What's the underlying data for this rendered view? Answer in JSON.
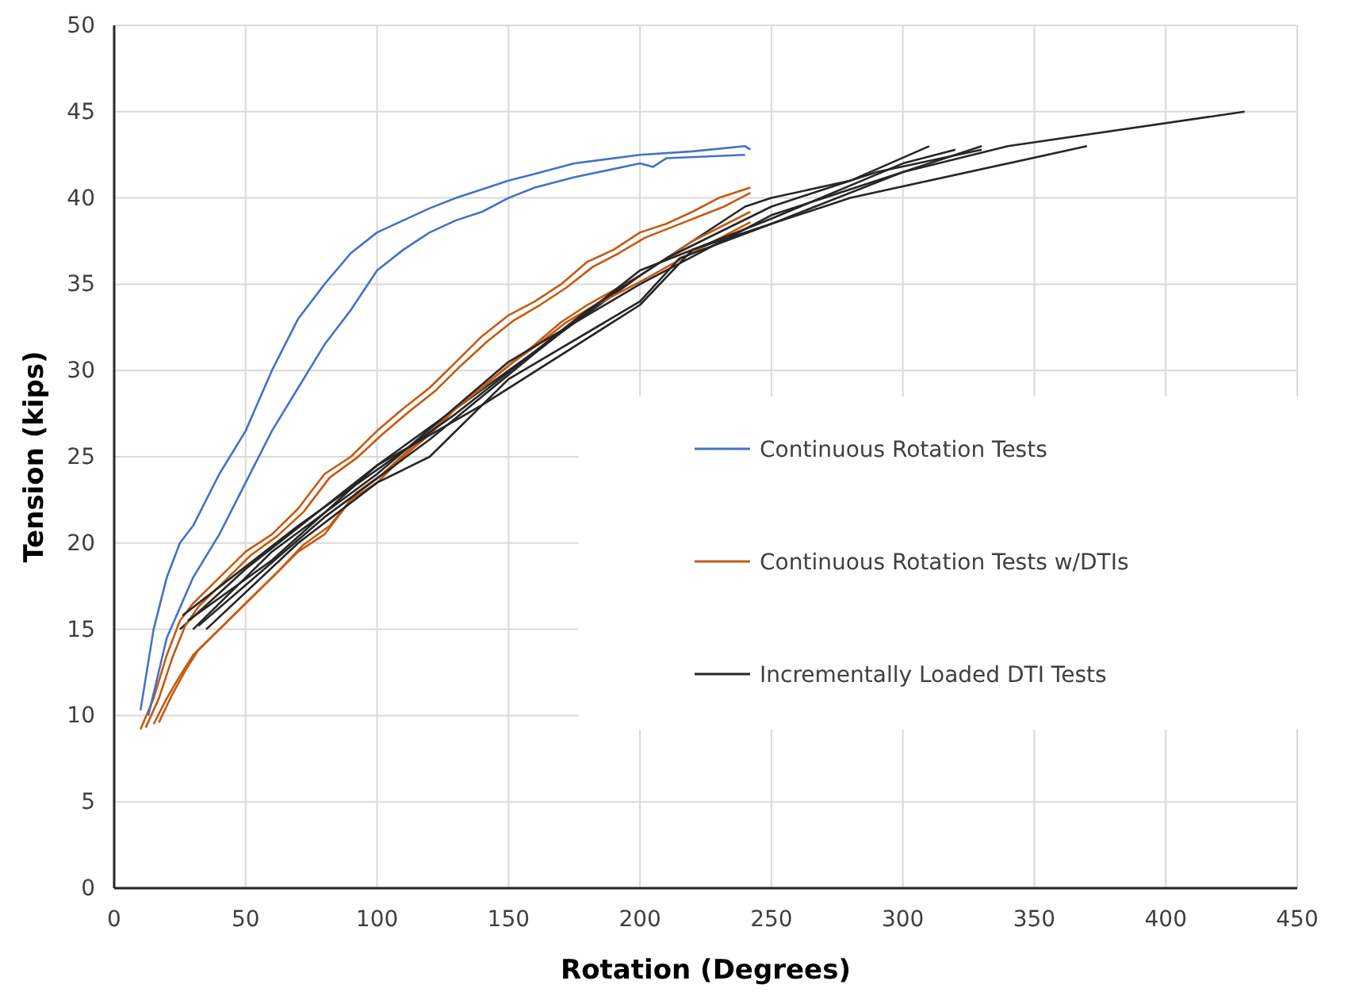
{
  "chart_data": {
    "type": "line",
    "xlabel": "Rotation (Degrees)",
    "ylabel": "Tension (kips)",
    "xlim": [
      0,
      450
    ],
    "xticks": [
      0,
      50,
      100,
      150,
      200,
      250,
      300,
      350,
      400,
      450
    ],
    "ylim": [
      0,
      50
    ],
    "yticks": [
      0,
      5,
      10,
      15,
      20,
      25,
      30,
      35,
      40,
      45,
      50
    ],
    "grid": true,
    "legend": "right",
    "marker": "none",
    "line_style": "solid",
    "series": [
      {
        "name": "Continuous Rotation Tests",
        "color": "#4472c4",
        "x": [
          10,
          15,
          20,
          25,
          30,
          35,
          40,
          50,
          60,
          70,
          80,
          90,
          100,
          110,
          120,
          130,
          140,
          150,
          160,
          175,
          200,
          220,
          240,
          242
        ],
        "values": [
          10.3,
          15,
          18,
          20,
          21,
          22.5,
          24,
          26.5,
          30,
          33,
          35,
          36.8,
          38,
          38.7,
          39.4,
          40,
          40.5,
          41,
          41.4,
          42,
          42.5,
          42.7,
          43,
          42.8
        ]
      },
      {
        "name": "Continuous Rotation Tests w/DTIs",
        "color": "#c55a11",
        "x": [
          10,
          15,
          20,
          25,
          30,
          40,
          50,
          60,
          70,
          80,
          90,
          100,
          110,
          120,
          130,
          140,
          150,
          160,
          170,
          180,
          190,
          200,
          210,
          220,
          230,
          242
        ],
        "values": [
          9.2,
          11,
          13.5,
          15.5,
          16.5,
          18,
          19.5,
          20.5,
          22,
          24,
          25,
          26.5,
          27.8,
          29,
          30.5,
          32,
          33.2,
          34,
          35,
          36.3,
          37,
          38,
          38.5,
          39.2,
          40,
          40.6
        ]
      },
      {
        "name": "Incrementally Loaded DTI Tests",
        "color": "#262626",
        "x": [
          25,
          50,
          100,
          150,
          200,
          240,
          250,
          280,
          310
        ],
        "values": [
          15,
          18.5,
          24.5,
          30,
          35.5,
          39.5,
          40,
          41,
          43
        ]
      },
      {
        "color": "#4472c4",
        "x": [
          13,
          20,
          30,
          40,
          50,
          60,
          70,
          80,
          90,
          100,
          110,
          120,
          130,
          140,
          150,
          160,
          175,
          200,
          205,
          210,
          240
        ],
        "values": [
          10,
          14.5,
          18,
          20.5,
          23.5,
          26.5,
          29,
          31.5,
          33.5,
          35.8,
          37,
          38,
          38.7,
          39.2,
          40,
          40.6,
          41.2,
          42,
          41.8,
          42.3,
          42.5
        ]
      },
      {
        "color": "#c55a11",
        "x": [
          12,
          17,
          22,
          27,
          32,
          42,
          52,
          62,
          72,
          82,
          92,
          102,
          112,
          122,
          132,
          142,
          152,
          162,
          172,
          182,
          192,
          202,
          212,
          222,
          232,
          242
        ],
        "values": [
          9.3,
          11,
          13.3,
          15.2,
          16.3,
          17.8,
          19.3,
          20.4,
          21.8,
          23.8,
          24.9,
          26.3,
          27.6,
          28.8,
          30.3,
          31.7,
          32.9,
          33.8,
          34.8,
          36,
          36.8,
          37.7,
          38.3,
          38.9,
          39.5,
          40.3
        ]
      },
      {
        "color": "#c55a11",
        "x": [
          15,
          20,
          25,
          30,
          40,
          50,
          60,
          70,
          80,
          90,
          100,
          110,
          120,
          130,
          140,
          150,
          160,
          170,
          180,
          200,
          220,
          242
        ],
        "values": [
          9.5,
          11,
          12.3,
          13.5,
          15,
          16.5,
          18,
          19.5,
          20.5,
          22.5,
          23.5,
          25,
          26.3,
          27.8,
          29,
          30.3,
          31.5,
          32.8,
          33.8,
          35.5,
          37.5,
          39.2
        ]
      },
      {
        "color": "#c55a11",
        "x": [
          17,
          22,
          27,
          32,
          42,
          52,
          62,
          72,
          82,
          92,
          102,
          112,
          122,
          132,
          142,
          152,
          162,
          172,
          182,
          202,
          222,
          242
        ],
        "values": [
          9.6,
          11.2,
          12.6,
          13.8,
          15.3,
          16.8,
          18.3,
          19.9,
          21,
          22.9,
          24,
          25.4,
          26.7,
          28.1,
          29.3,
          30.5,
          31.6,
          32.8,
          33.7,
          35.3,
          37,
          38.6
        ]
      },
      {
        "color": "#262626",
        "x": [
          30,
          60,
          100,
          150,
          200,
          250,
          300,
          330
        ],
        "values": [
          15,
          19.5,
          24,
          30.5,
          35,
          39,
          41.5,
          43
        ]
      },
      {
        "color": "#262626",
        "x": [
          35,
          70,
          100,
          120,
          150,
          200,
          215,
          250,
          300,
          340,
          430
        ],
        "values": [
          15,
          20,
          23.5,
          25,
          29.5,
          34,
          36.5,
          38.5,
          41.5,
          43,
          45
        ]
      },
      {
        "color": "#262626",
        "x": [
          28,
          60,
          100,
          140,
          200,
          220,
          280,
          370
        ],
        "values": [
          15.5,
          19,
          24.5,
          28,
          33.8,
          37,
          40,
          43
        ]
      },
      {
        "color": "#262626",
        "x": [
          32,
          80,
          120,
          160,
          200,
          250,
          300,
          320
        ],
        "values": [
          15.2,
          21.5,
          26,
          31,
          35.8,
          38.8,
          42,
          42.8
        ]
      },
      {
        "color": "#262626",
        "x": [
          26,
          70,
          130,
          180,
          210,
          250,
          290,
          330
        ],
        "values": [
          15.8,
          21,
          27.5,
          33.5,
          36.5,
          39.5,
          41.5,
          42.8
        ]
      }
    ]
  }
}
